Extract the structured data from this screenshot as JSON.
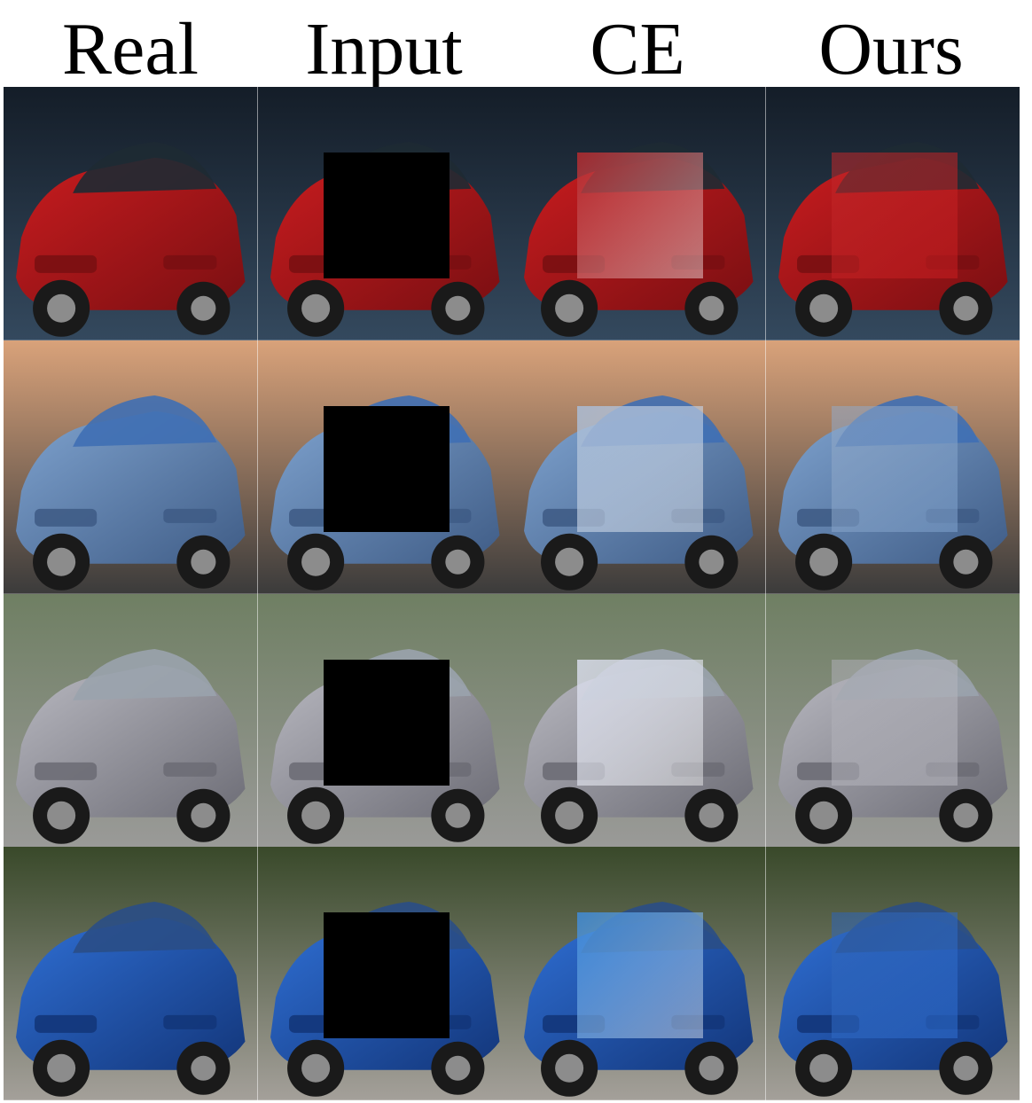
{
  "columns": [
    {
      "label": "Real"
    },
    {
      "label": "Input"
    },
    {
      "label": "CE"
    },
    {
      "label": "Ours"
    }
  ],
  "rows": [
    {
      "name": "red-car",
      "bg_top": "#141d28",
      "bg_bottom": "#34495e",
      "body": "#c91c1f",
      "body_dark": "#7a0f12",
      "glass": "#1e2a33",
      "ce_patch": "#b52a2e",
      "ours_patch": "#c0282a"
    },
    {
      "name": "silver-blue-car",
      "bg_top": "#d9a27a",
      "bg_bottom": "#3b3b3b",
      "body": "#7fa3cf",
      "body_dark": "#3f5c86",
      "glass": "#3f6fb4",
      "ce_patch": "#a9bcd6",
      "ours_patch": "#93a9c6"
    },
    {
      "name": "silver-car",
      "bg_top": "#6f7f63",
      "bg_bottom": "#9a9a98",
      "body": "#b9b9c1",
      "body_dark": "#6d6d76",
      "glass": "#9aa3ad",
      "ce_patch": "#d7dbea",
      "ours_patch": "#adadb5"
    },
    {
      "name": "blue-car",
      "bg_top": "#39492a",
      "bg_bottom": "#a4a09a",
      "body": "#2f6fd4",
      "body_dark": "#13367a",
      "glass": "#2a4e86",
      "ce_patch": "#3f8bd8",
      "ours_patch": "#2f64b5"
    }
  ]
}
